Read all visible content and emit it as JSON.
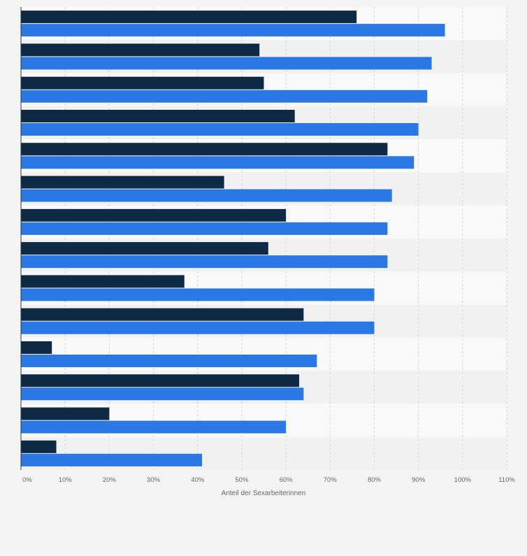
{
  "chart_data": {
    "type": "bar",
    "orientation": "horizontal",
    "xlabel": "Anteil der Sexarbeiterinnen",
    "xlim": [
      0,
      110
    ],
    "xticks": [
      "0%",
      "10%",
      "20%",
      "30%",
      "40%",
      "50%",
      "60%",
      "70%",
      "80%",
      "90%",
      "100%",
      "110%"
    ],
    "xtick_values": [
      0,
      10,
      20,
      30,
      40,
      50,
      60,
      70,
      80,
      90,
      100,
      110
    ],
    "grid": true,
    "colors": {
      "series_dark": "#0f2a45",
      "series_blue": "#2b78e4",
      "band_light": "#f9f9f9",
      "band_dark": "#f1f1f1",
      "grid": "#d4d4d4",
      "axis": "#333333",
      "tick_text": "#666666"
    },
    "series": [
      {
        "values": [
          76,
          54,
          55,
          62,
          83,
          46,
          60,
          56,
          37,
          64,
          7,
          63,
          20,
          8
        ]
      },
      {
        "values": [
          96,
          93,
          92,
          90,
          89,
          84,
          83,
          83,
          80,
          80,
          67,
          64,
          60,
          41
        ]
      }
    ]
  }
}
